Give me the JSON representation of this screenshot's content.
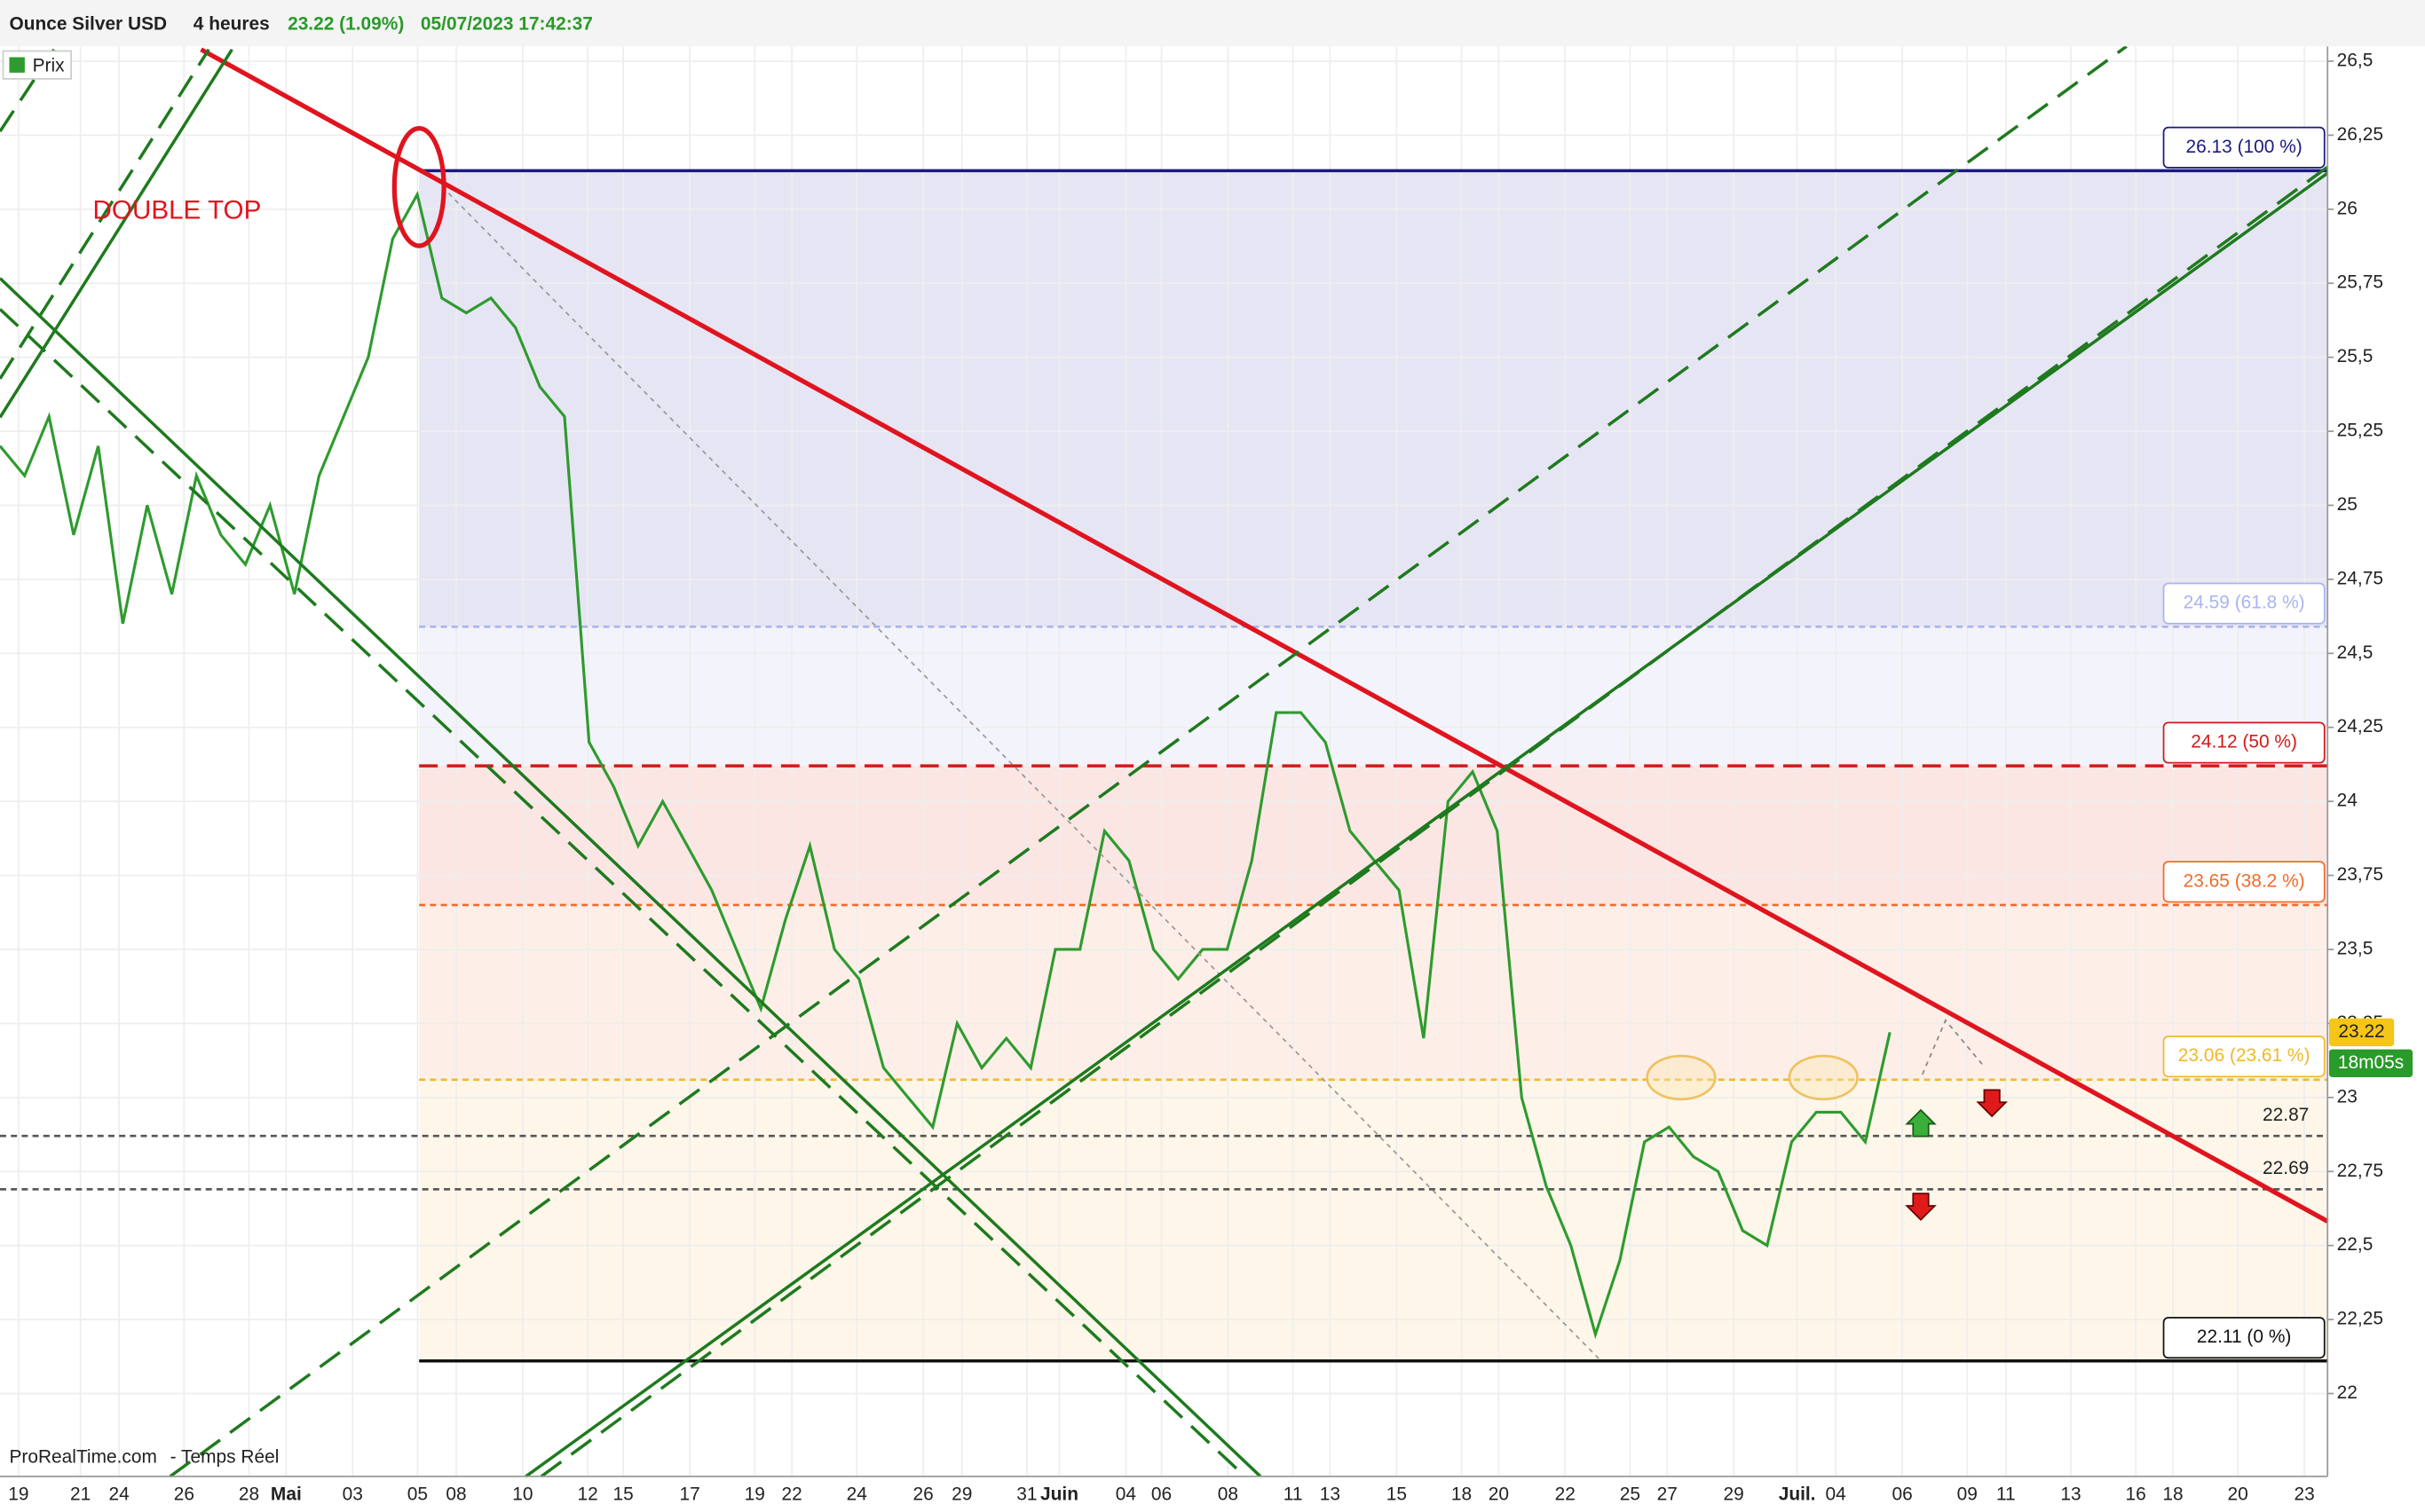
{
  "header": {
    "symbol": "Ounce Silver USD",
    "period": "4 heures",
    "change": "23.22 (1.09%)",
    "datetime": "05/07/2023 17:42:37"
  },
  "chart_data": {
    "type": "line",
    "annotation": "DOUBLE TOP",
    "source": "ProRealTime.com",
    "feed": "- Temps Réel",
    "countdown": "18m05s",
    "series": [
      {
        "name": "Prix",
        "color": "#2e9b2e",
        "values": [
          25.2,
          25.1,
          25.3,
          24.9,
          25.2,
          24.6,
          25.0,
          24.7,
          25.1,
          24.9,
          24.8,
          25.0,
          24.7,
          25.1,
          25.3,
          25.5,
          25.9,
          26.05,
          25.7,
          25.65,
          25.7,
          25.6,
          25.4,
          25.3,
          24.2,
          24.05,
          23.85,
          24.0,
          23.85,
          23.7,
          23.5,
          23.3,
          23.6,
          23.85,
          23.5,
          23.4,
          23.1,
          23.0,
          22.9,
          23.25,
          23.1,
          23.2,
          23.1,
          23.5,
          23.5,
          23.9,
          23.8,
          23.5,
          23.4,
          23.5,
          23.5,
          23.8,
          24.3,
          24.3,
          24.2,
          23.9,
          23.8,
          23.7,
          23.2,
          24.0,
          24.1,
          23.9,
          23.0,
          22.7,
          22.5,
          22.2,
          22.45,
          22.85,
          22.9,
          22.8,
          22.75,
          22.55,
          22.5,
          22.85,
          22.95,
          22.95,
          22.85,
          23.22
        ]
      }
    ],
    "xtick_labels": [
      "19",
      "21",
      "24",
      "26",
      "28",
      "Mai",
      "03",
      "05",
      "08",
      "10",
      "12",
      "15",
      "17",
      "19",
      "22",
      "24",
      "26",
      "29",
      "31",
      "Juin",
      "04",
      "06",
      "08",
      "11",
      "13",
      "15",
      "18",
      "20",
      "22",
      "25",
      "27",
      "29",
      "Juil.",
      "04",
      "06",
      "09",
      "11",
      "13",
      "16",
      "18",
      "20",
      "23"
    ],
    "ylim": [
      21.72,
      26.55
    ],
    "yticks": [
      {
        "value": 22,
        "label": "22"
      },
      {
        "value": 22.25,
        "label": "22,25"
      },
      {
        "value": 22.5,
        "label": "22,5"
      },
      {
        "value": 22.75,
        "label": "22,75"
      },
      {
        "value": 23,
        "label": "23"
      },
      {
        "value": 23.25,
        "label": "23,25"
      },
      {
        "value": 23.5,
        "label": "23,5"
      },
      {
        "value": 23.75,
        "label": "23,75"
      },
      {
        "value": 24,
        "label": "24"
      },
      {
        "value": 24.25,
        "label": "24,25"
      },
      {
        "value": 24.5,
        "label": "24,5"
      },
      {
        "value": 24.75,
        "label": "24,75"
      },
      {
        "value": 25,
        "label": "25"
      },
      {
        "value": 25.25,
        "label": "25,25"
      },
      {
        "value": 25.5,
        "label": "25,5"
      },
      {
        "value": 25.75,
        "label": "25,75"
      },
      {
        "value": 26,
        "label": "26"
      },
      {
        "value": 26.25,
        "label": "26,25"
      },
      {
        "value": 26.5,
        "label": "26,5"
      }
    ],
    "levels": [
      {
        "value": 26.13,
        "label": "26.13 (100 %)",
        "color": "#1a1a80",
        "zone": "#e6e5f4"
      },
      {
        "value": 24.59,
        "label": "24.59 (61.8 %)",
        "color": "#a9b4f0",
        "zone": "#f3f3fb"
      },
      {
        "value": 24.12,
        "label": "24.12 (50 %)",
        "color": "#d01a1a",
        "zone": "#fbe6e4"
      },
      {
        "value": 23.65,
        "label": "23.65 (38.2 %)",
        "color": "#f06a2a",
        "zone": "#fdefe8"
      },
      {
        "value": 23.06,
        "label": "23.06 (23.61 %)",
        "color": "#f0b82a",
        "zone": "#fdf6e9"
      },
      {
        "value": 22.11,
        "label": "22.11 (0 %)",
        "color": "#111111",
        "zone": "#ffffff"
      }
    ],
    "hlines": [
      {
        "value": 22.87,
        "label": "22.87"
      },
      {
        "value": 22.69,
        "label": "22.69"
      }
    ],
    "last_price": 23.22
  }
}
